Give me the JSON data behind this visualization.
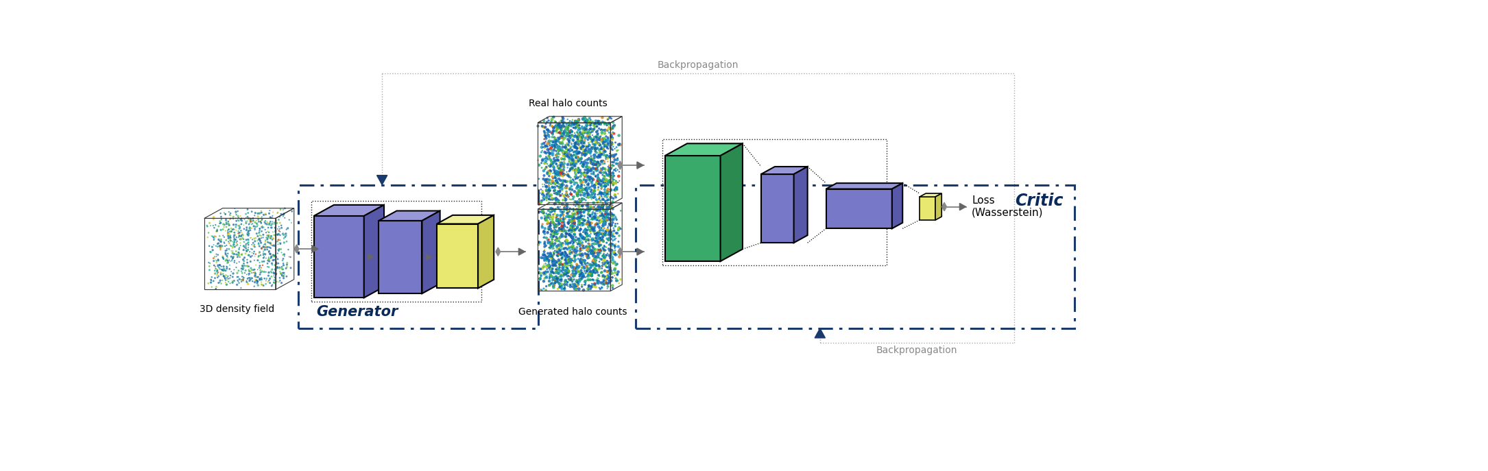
{
  "fig_width": 21.7,
  "fig_height": 6.87,
  "bg_color": "#ffffff",
  "dashed_box_color": "#1a3a6b",
  "cube_purple_face": "#7878c8",
  "cube_purple_top": "#9898d8",
  "cube_purple_side": "#5858a8",
  "cube_green_face": "#3aaa6a",
  "cube_green_top": "#5acc8a",
  "cube_green_side": "#2a8a50",
  "cube_yellow_face": "#e8e870",
  "cube_yellow_top": "#f0f098",
  "cube_yellow_side": "#c8c850",
  "arrow_color": "#888888",
  "label_color": "#000000",
  "title_color": "#0a2a5a",
  "generator_label": "Generator",
  "critic_label": "Critic",
  "density_label": "3D density field",
  "real_label": "Real halo counts",
  "gen_label": "Generated halo counts",
  "loss_label": "Loss\n(Wasserstein)",
  "backprop_label": "Backpropagation"
}
